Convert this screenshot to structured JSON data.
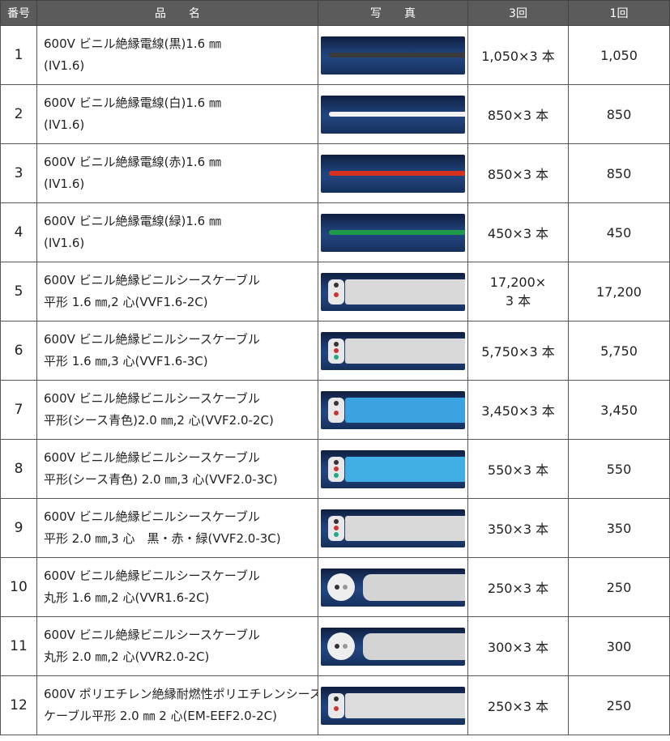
{
  "headers": {
    "no": "番号",
    "name": "品　　名",
    "photo": "写　　真",
    "qty": "3回",
    "once": "1回"
  },
  "rows": [
    {
      "no": "1",
      "name1": "600V ビニル絶縁電線(黒)1.6 ㎜",
      "name2": "(IV1.6)",
      "qty": "1,050×3 本",
      "qty2": "",
      "once": "1,050",
      "photo": "black-wire-photo",
      "wire_color": "#3a3a3a"
    },
    {
      "no": "2",
      "name1": "600V ビニル絶縁電線(白)1.6 ㎜",
      "name2": "(IV1.6)",
      "qty": "850×3 本",
      "qty2": "",
      "once": "850",
      "photo": "white-wire-photo",
      "wire_color": "#f2f2f2"
    },
    {
      "no": "3",
      "name1": "600V ビニル絶縁電線(赤)1.6 ㎜",
      "name2": "(IV1.6)",
      "qty": "850×3 本",
      "qty2": "",
      "once": "850",
      "photo": "red-wire-photo",
      "wire_color": "#d8321e"
    },
    {
      "no": "4",
      "name1": "600V ビニル絶縁電線(緑)1.6 ㎜",
      "name2": "(IV1.6)",
      "qty": "450×3 本",
      "qty2": "",
      "once": "450",
      "photo": "green-wire-photo",
      "wire_color": "#1f9a4a"
    },
    {
      "no": "5",
      "name1": "600V ビニル絶縁ビニルシースケーブル",
      "name2": "平形 1.6 ㎜,2 心(VVF1.6-2C)",
      "qty": "17,200×",
      "qty2": "3 本",
      "once": "17,200",
      "photo": "vvf-cable-photo",
      "wire_color": "#d9d9d9"
    },
    {
      "no": "6",
      "name1": "600V ビニル絶縁ビニルシースケーブル",
      "name2": "平形 1.6 ㎜,3 心(VVF1.6-3C)",
      "qty": "5,750×3 本",
      "qty2": "",
      "once": "5,750",
      "photo": "vvf-cable-photo",
      "wire_color": "#d9d9d9"
    },
    {
      "no": "7",
      "name1": "600V ビニル絶縁ビニルシースケーブル",
      "name2": "平形(シース青色)2.0 ㎜,2 心(VVF2.0-2C)",
      "qty": "3,450×3 本",
      "qty2": "",
      "once": "3,450",
      "photo": "blue-vvf-cable-photo",
      "wire_color": "#3aa3e0"
    },
    {
      "no": "8",
      "name1": "600V ビニル絶縁ビニルシースケーブル",
      "name2": "平形(シース青色) 2.0 ㎜,3 心(VVF2.0-3C)",
      "qty": "550×3 本",
      "qty2": "",
      "once": "550",
      "photo": "blue-vvf-cable-photo",
      "wire_color": "#41aee6"
    },
    {
      "no": "9",
      "name1": "600V ビニル絶縁ビニルシースケーブル",
      "name2": "平形 2.0 ㎜,3 心　黒・赤・緑(VVF2.0-3C)",
      "qty": "350×3 本",
      "qty2": "",
      "once": "350",
      "photo": "vvf-cable-photo",
      "wire_color": "#d9d9d9"
    },
    {
      "no": "10",
      "name1": "600V ビニル絶縁ビニルシースケーブル",
      "name2": "丸形 1.6 ㎜,2 心(VVR1.6-2C)",
      "qty": "250×3 本",
      "qty2": "",
      "once": "250",
      "photo": "vvr-cable-photo",
      "wire_color": "#d4d4d4"
    },
    {
      "no": "11",
      "name1": "600V ビニル絶縁ビニルシースケーブル",
      "name2": "丸形 2.0 ㎜,2 心(VVR2.0-2C)",
      "qty": "300×3 本",
      "qty2": "",
      "once": "300",
      "photo": "vvr-cable-photo",
      "wire_color": "#d4d4d4"
    },
    {
      "no": "12",
      "name1": "600V ポリエチレン絶縁耐燃性ポリエチレンシース",
      "name2": "ケーブル平形 2.0 ㎜ 2 心(EM-EEF2.0-2C)",
      "qty": "250×3 本",
      "qty2": "",
      "once": "250",
      "photo": "eef-cable-photo",
      "wire_color": "#dcdcdc"
    }
  ]
}
